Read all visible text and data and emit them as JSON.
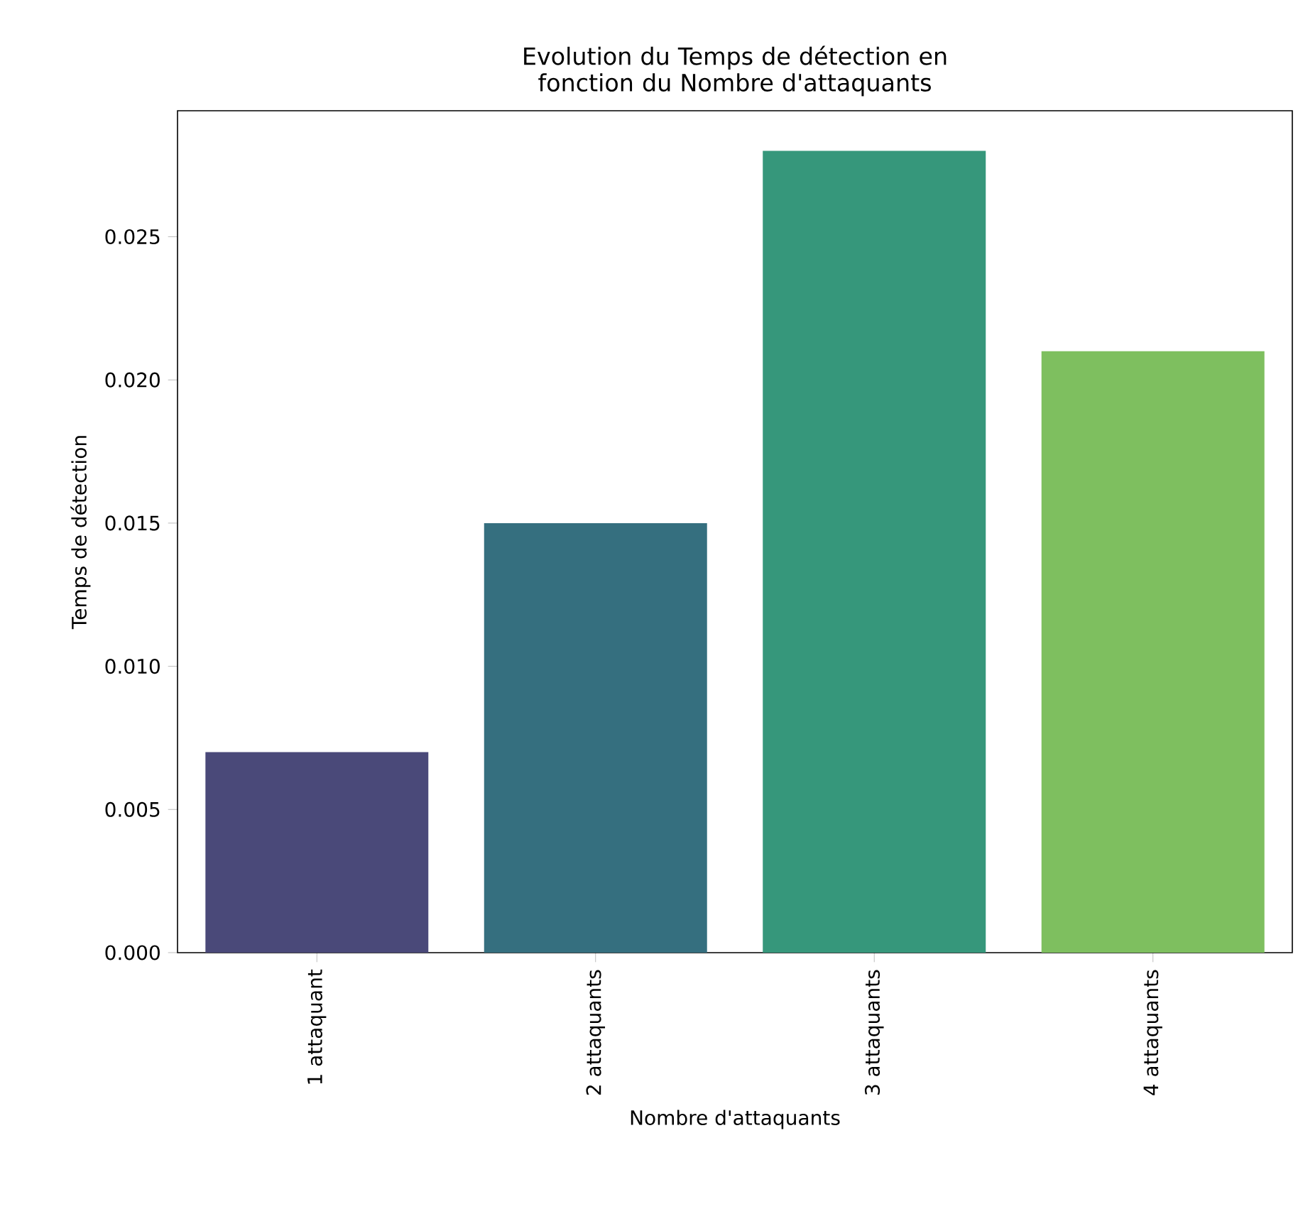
{
  "chart_data": {
    "type": "bar",
    "title": "Evolution du Temps de détection en fonction du Nombre d'attaquants",
    "xlabel": "Nombre d'attaquants",
    "ylabel": "Temps de détection",
    "categories": [
      "1 attaquant",
      "2 attaquants",
      "3 attaquants",
      "4 attaquants"
    ],
    "values": [
      0.007,
      0.015,
      0.028,
      0.021
    ],
    "colors": [
      "#4a4979",
      "#356f7f",
      "#36977b",
      "#7ebf5f"
    ],
    "ylim": [
      0,
      0.0294
    ],
    "yticks": [
      {
        "value": 0,
        "label": "0.000"
      },
      {
        "value": 0.005,
        "label": "0.005"
      },
      {
        "value": 0.01,
        "label": "0.010"
      },
      {
        "value": 0.015,
        "label": "0.015"
      },
      {
        "value": 0.02,
        "label": "0.020"
      },
      {
        "value": 0.025,
        "label": "0.025"
      }
    ],
    "grid": false
  }
}
